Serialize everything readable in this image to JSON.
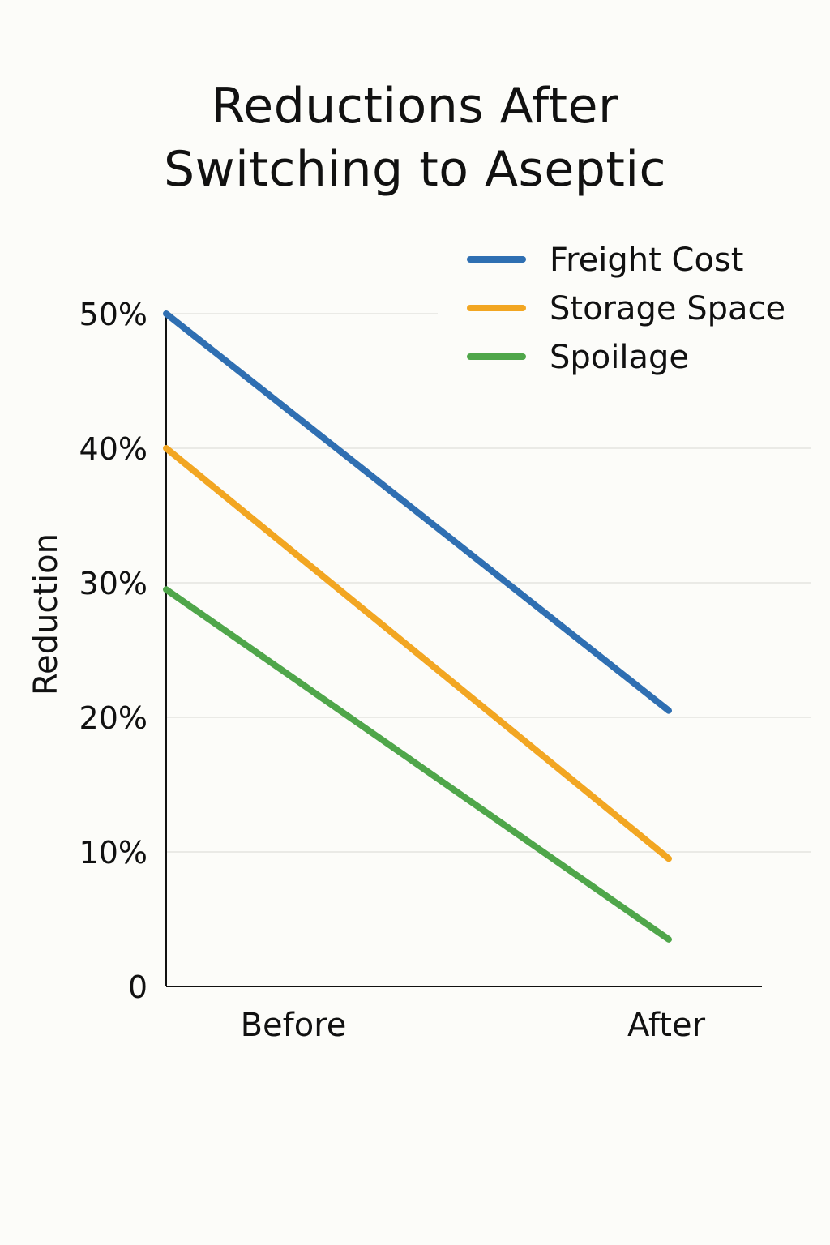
{
  "chart_data": {
    "type": "line",
    "title_lines": [
      "Reductions After",
      "Switching to Aseptic"
    ],
    "ylabel": "Reduction",
    "xlabel": "",
    "categories": [
      "Before",
      "After"
    ],
    "ylim": [
      0,
      50
    ],
    "yticks": [
      0,
      10,
      20,
      30,
      40,
      50
    ],
    "ytick_labels": [
      "0",
      "10%",
      "20%",
      "30%",
      "40%",
      "50%"
    ],
    "grid": true,
    "legend_position": "top-right",
    "series": [
      {
        "name": "Freight Cost",
        "values": [
          50,
          20.5
        ],
        "color": "#2f6fb2"
      },
      {
        "name": "Storage Space",
        "values": [
          40,
          9.5
        ],
        "color": "#f2a622"
      },
      {
        "name": "Spoilage",
        "values": [
          29.5,
          3.5
        ],
        "color": "#4fa64a"
      }
    ]
  }
}
